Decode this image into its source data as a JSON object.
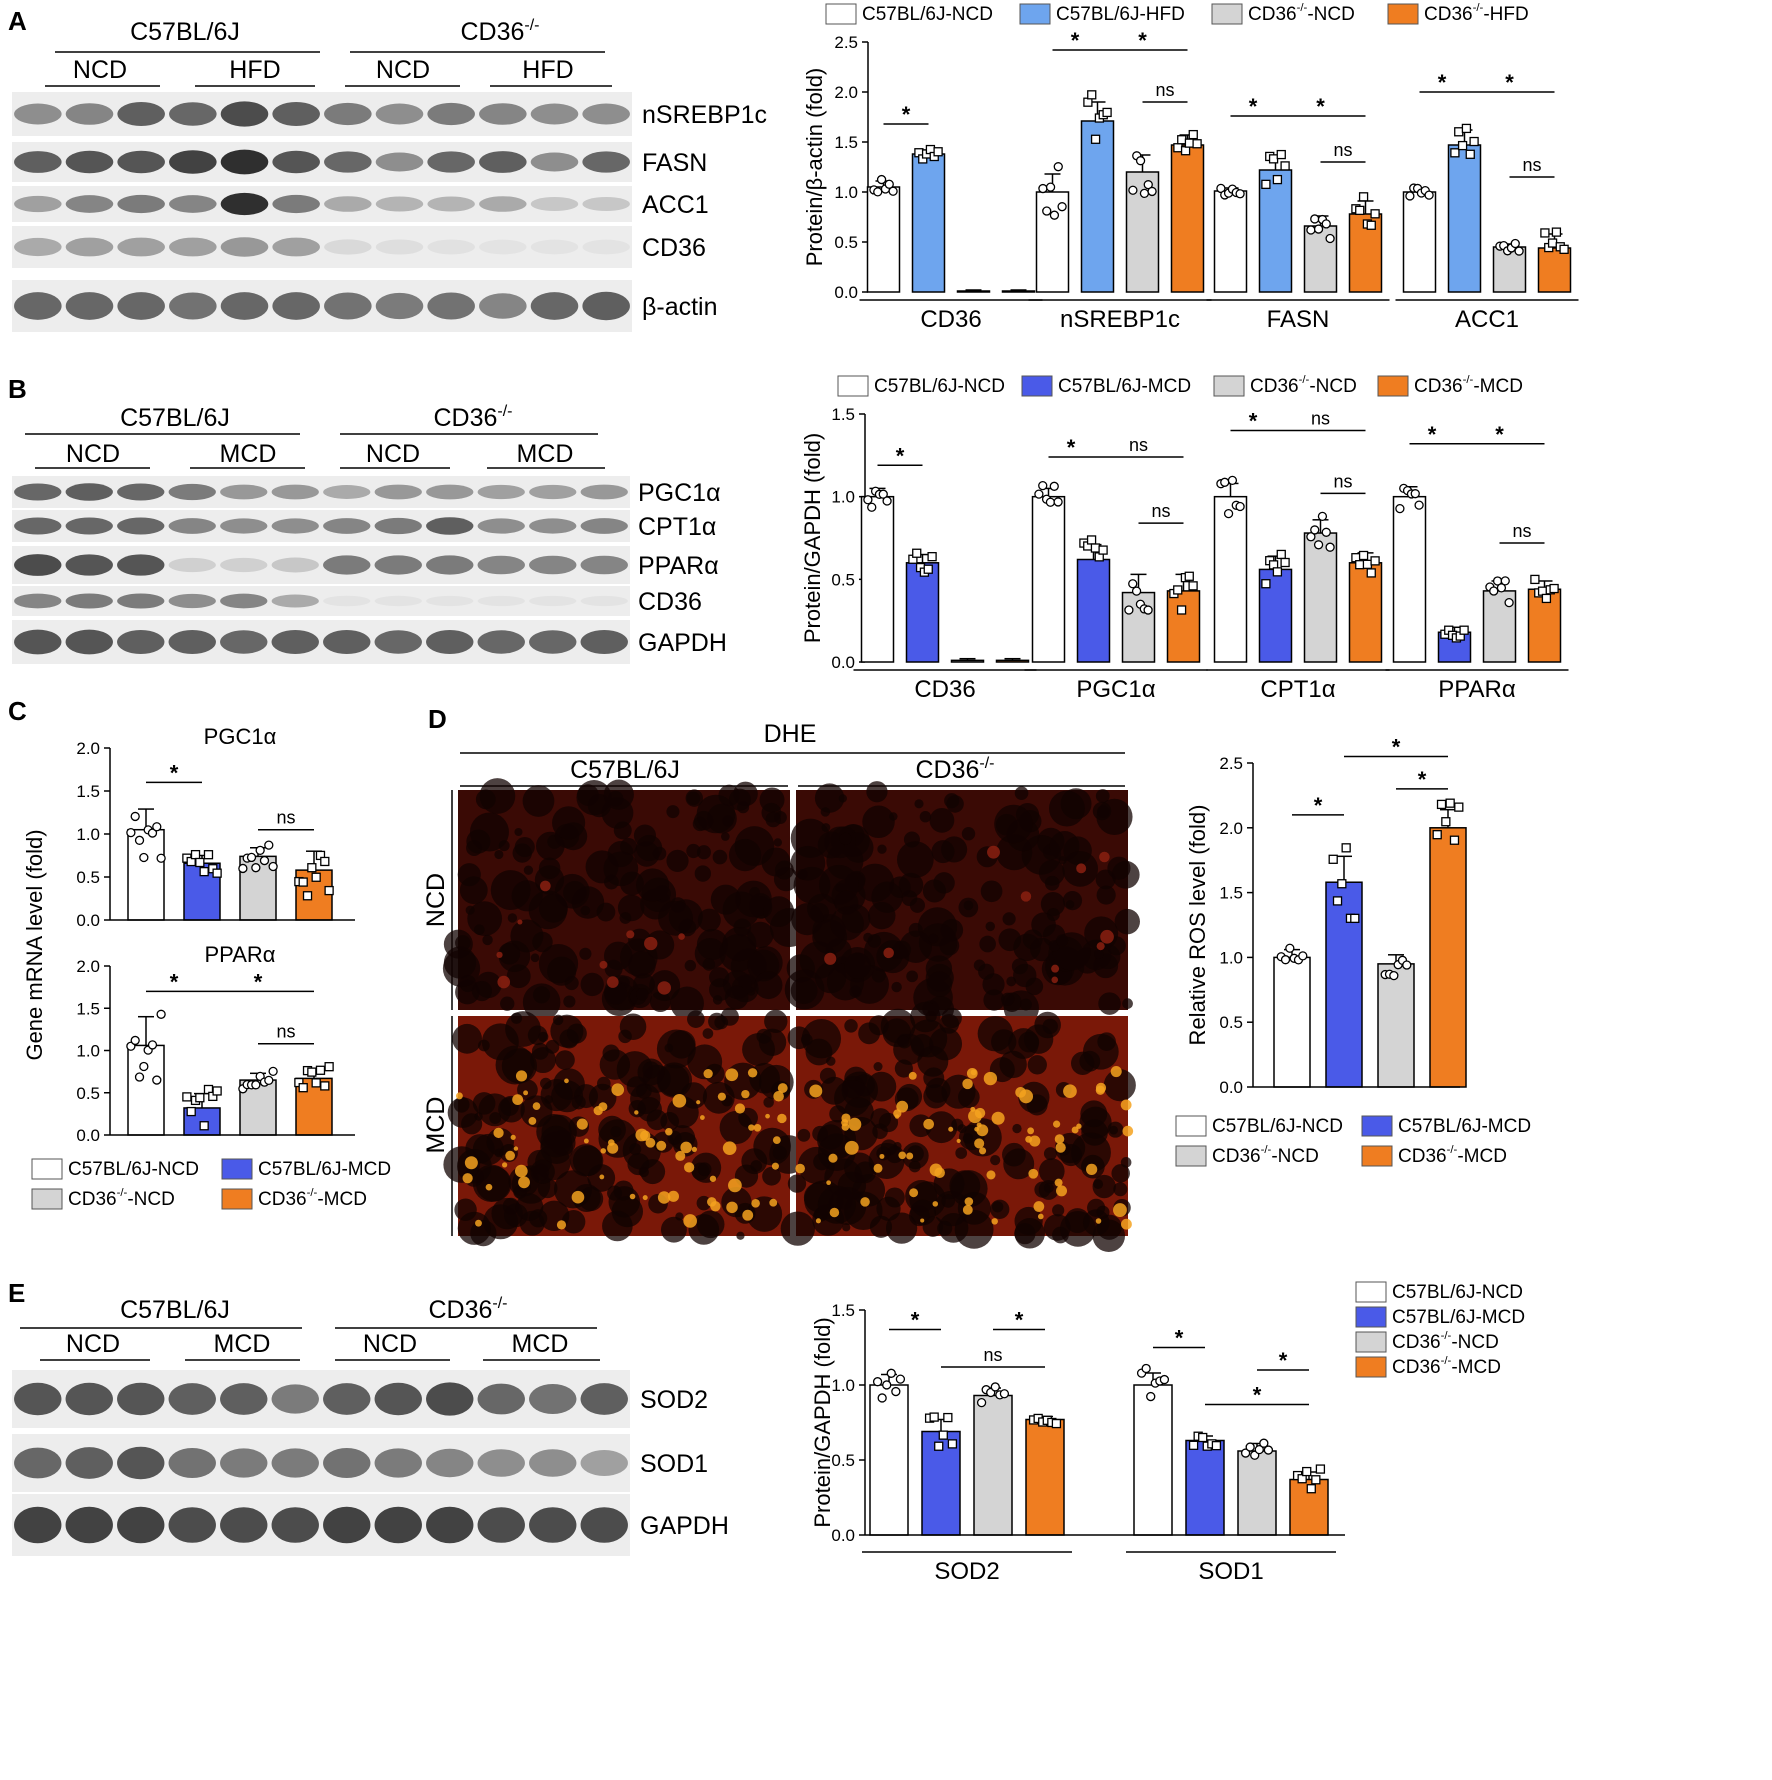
{
  "colors": {
    "white": "#ffffff",
    "hfd_blue": "#6ea5ee",
    "mcd_blue": "#4a5ae8",
    "gray": "#d4d4d4",
    "orange": "#ef7d21"
  },
  "panels": {
    "A": {
      "label": "A",
      "groups": [
        "C57BL/6J",
        "CD36"
      ],
      "superscript": "-/-",
      "sub": [
        "NCD",
        "HFD",
        "NCD",
        "HFD"
      ],
      "proteins": [
        "nSREBP1c",
        "FASN",
        "ACC1",
        "CD36",
        "β-actin"
      ]
    },
    "B": {
      "label": "B",
      "groups": [
        "C57BL/6J",
        "CD36"
      ],
      "superscript": "-/-",
      "sub": [
        "NCD",
        "MCD",
        "NCD",
        "MCD"
      ],
      "proteins": [
        "PGC1α",
        "CPT1α",
        "PPARα",
        "CD36",
        "GAPDH"
      ]
    },
    "C": {
      "label": "C"
    },
    "D": {
      "label": "D",
      "title": "DHE",
      "groups": [
        "C57BL/6J",
        "CD36"
      ],
      "superscript": "-/-",
      "rows": [
        "NCD",
        "MCD"
      ]
    },
    "E": {
      "label": "E",
      "groups": [
        "C57BL/6J",
        "CD36"
      ],
      "superscript": "-/-",
      "sub": [
        "NCD",
        "MCD",
        "NCD",
        "MCD"
      ],
      "proteins": [
        "SOD2",
        "SOD1",
        "GAPDH"
      ]
    }
  },
  "chart_data": [
    {
      "id": "A",
      "type": "bar",
      "ylabel": "Protein/β-actin (fold)",
      "ylim": [
        0,
        2.5
      ],
      "yticks": [
        "0.0",
        "0.5",
        "1.0",
        "1.5",
        "2.0",
        "2.5"
      ],
      "categories": [
        "CD36",
        "nSREBP1c",
        "FASN",
        "ACC1"
      ],
      "legend": [
        {
          "name": "C57BL/6J-NCD",
          "sup": ""
        },
        {
          "name": "C57BL/6J-HFD",
          "sup": ""
        },
        {
          "name": "CD36",
          "sup": "-/-",
          "suffix": "-NCD"
        },
        {
          "name": "CD36",
          "sup": "-/-",
          "suffix": "-HFD"
        }
      ],
      "series_colors": [
        "#ffffff",
        "#6ea5ee",
        "#d4d4d4",
        "#ef7d21"
      ],
      "series": [
        {
          "values": [
            1.05,
            1.0,
            1.01,
            1.0
          ],
          "err": [
            0.06,
            0.18,
            0.03,
            0.03
          ]
        },
        {
          "values": [
            1.38,
            1.71,
            1.22,
            1.47
          ],
          "err": [
            0.04,
            0.19,
            0.12,
            0.15
          ]
        },
        {
          "values": [
            0.01,
            1.2,
            0.66,
            0.45
          ],
          "err": [
            0.01,
            0.17,
            0.1,
            0.03
          ]
        },
        {
          "values": [
            0.01,
            1.47,
            0.78,
            0.44
          ],
          "err": [
            0.01,
            0.1,
            0.13,
            0.14
          ]
        }
      ],
      "annotations": [
        {
          "text": "*",
          "cat": 0,
          "from": 0,
          "to": 1,
          "y": 1.68
        },
        {
          "text": "*",
          "cat": 1,
          "from": 0,
          "to": 1,
          "y": 2.42
        },
        {
          "text": "*",
          "cat": 1,
          "from": 1,
          "to": 3,
          "y": 2.42
        },
        {
          "text": "ns",
          "cat": 1,
          "from": 2,
          "to": 3,
          "y": 1.9
        },
        {
          "text": "*",
          "cat": 2,
          "from": 0,
          "to": 1,
          "y": 1.76
        },
        {
          "text": "*",
          "cat": 2,
          "from": 1,
          "to": 3,
          "y": 1.76
        },
        {
          "text": "ns",
          "cat": 2,
          "from": 2,
          "to": 3,
          "y": 1.3
        },
        {
          "text": "*",
          "cat": 3,
          "from": 0,
          "to": 1,
          "y": 2.0
        },
        {
          "text": "*",
          "cat": 3,
          "from": 1,
          "to": 3,
          "y": 2.0
        },
        {
          "text": "ns",
          "cat": 3,
          "from": 2,
          "to": 3,
          "y": 1.15
        }
      ]
    },
    {
      "id": "B",
      "type": "bar",
      "ylabel": "Protein/GAPDH (fold)",
      "ylim": [
        0,
        1.5
      ],
      "yticks": [
        "0.0",
        "0.5",
        "1.0",
        "1.5"
      ],
      "categories": [
        "CD36",
        "PGC1α",
        "CPT1α",
        "PPARα"
      ],
      "legend": [
        {
          "name": "C57BL/6J-NCD",
          "sup": ""
        },
        {
          "name": "C57BL/6J-MCD",
          "sup": ""
        },
        {
          "name": "CD36",
          "sup": "-/-",
          "suffix": "-NCD"
        },
        {
          "name": "CD36",
          "sup": "-/-",
          "suffix": "-MCD"
        }
      ],
      "series_colors": [
        "#ffffff",
        "#4a5ae8",
        "#d4d4d4",
        "#ef7d21"
      ],
      "series": [
        {
          "values": [
            1.0,
            1.0,
            1.0,
            1.0
          ],
          "err": [
            0.05,
            0.05,
            0.08,
            0.06
          ]
        },
        {
          "values": [
            0.6,
            0.62,
            0.56,
            0.18
          ],
          "err": [
            0.05,
            0.09,
            0.08,
            0.03
          ]
        },
        {
          "values": [
            0.01,
            0.42,
            0.78,
            0.43
          ],
          "err": [
            0.01,
            0.11,
            0.08,
            0.06
          ]
        },
        {
          "values": [
            0.01,
            0.43,
            0.6,
            0.44
          ],
          "err": [
            0.01,
            0.1,
            0.06,
            0.05
          ]
        }
      ],
      "annotations": [
        {
          "text": "*",
          "cat": 0,
          "from": 0,
          "to": 1,
          "y": 1.19
        },
        {
          "text": "*",
          "cat": 1,
          "from": 0,
          "to": 1,
          "y": 1.24
        },
        {
          "text": "ns",
          "cat": 1,
          "from": 1,
          "to": 3,
          "y": 1.24
        },
        {
          "text": "ns",
          "cat": 1,
          "from": 2,
          "to": 3,
          "y": 0.84
        },
        {
          "text": "*",
          "cat": 2,
          "from": 0,
          "to": 1,
          "y": 1.4
        },
        {
          "text": "ns",
          "cat": 2,
          "from": 1,
          "to": 3,
          "y": 1.4
        },
        {
          "text": "ns",
          "cat": 2,
          "from": 2,
          "to": 3,
          "y": 1.02
        },
        {
          "text": "*",
          "cat": 3,
          "from": 0,
          "to": 1,
          "y": 1.32
        },
        {
          "text": "*",
          "cat": 3,
          "from": 1,
          "to": 3,
          "y": 1.32
        },
        {
          "text": "ns",
          "cat": 3,
          "from": 2,
          "to": 3,
          "y": 0.72
        }
      ]
    },
    {
      "id": "C1",
      "type": "bar",
      "title": "PGC1α",
      "ylim": [
        0,
        2.0
      ],
      "yticks": [
        "0.0",
        "0.5",
        "1.0",
        "1.5",
        "2.0"
      ],
      "categories": [
        ""
      ],
      "series_colors": [
        "#ffffff",
        "#4a5ae8",
        "#d4d4d4",
        "#ef7d21"
      ],
      "series": [
        {
          "values": [
            1.05
          ],
          "err": [
            0.24
          ]
        },
        {
          "values": [
            0.66
          ],
          "err": [
            0.09
          ]
        },
        {
          "values": [
            0.74
          ],
          "err": [
            0.1
          ]
        },
        {
          "values": [
            0.58
          ],
          "err": [
            0.22
          ]
        }
      ],
      "annotations": [
        {
          "text": "*",
          "cat": 0,
          "from": 0,
          "to": 1,
          "y": 1.6
        },
        {
          "text": "ns",
          "cat": 0,
          "from": 2,
          "to": 3,
          "y": 1.05
        }
      ]
    },
    {
      "id": "C2",
      "type": "bar",
      "title": "PPARα",
      "ylim": [
        0,
        2.0
      ],
      "yticks": [
        "0.0",
        "0.5",
        "1.0",
        "1.5",
        "2.0"
      ],
      "categories": [
        ""
      ],
      "series_colors": [
        "#ffffff",
        "#4a5ae8",
        "#d4d4d4",
        "#ef7d21"
      ],
      "series": [
        {
          "values": [
            1.06
          ],
          "err": [
            0.34
          ]
        },
        {
          "values": [
            0.32
          ],
          "err": [
            0.17
          ]
        },
        {
          "values": [
            0.65
          ],
          "err": [
            0.08
          ]
        },
        {
          "values": [
            0.67
          ],
          "err": [
            0.1
          ]
        }
      ],
      "annotations": [
        {
          "text": "*",
          "cat": 0,
          "from": 0,
          "to": 1,
          "y": 1.7
        },
        {
          "text": "*",
          "cat": 0,
          "from": 1,
          "to": 3,
          "y": 1.7
        },
        {
          "text": "ns",
          "cat": 0,
          "from": 2,
          "to": 3,
          "y": 1.08
        }
      ]
    },
    {
      "id": "C_legend",
      "type": "legend",
      "ylabel": "Gene mRNA level (fold)",
      "legend": [
        {
          "name": "C57BL/6J-NCD",
          "sup": ""
        },
        {
          "name": "C57BL/6J-MCD",
          "sup": ""
        },
        {
          "name": "CD36",
          "sup": "-/-",
          "suffix": "-NCD"
        },
        {
          "name": "CD36",
          "sup": "-/-",
          "suffix": "-MCD"
        }
      ]
    },
    {
      "id": "D",
      "type": "bar",
      "ylabel": "Relative ROS level (fold)",
      "ylim": [
        0,
        2.5
      ],
      "yticks": [
        "0.0",
        "0.5",
        "1.0",
        "1.5",
        "2.0",
        "2.5"
      ],
      "categories": [
        ""
      ],
      "series_colors": [
        "#ffffff",
        "#4a5ae8",
        "#d4d4d4",
        "#ef7d21"
      ],
      "legend": [
        {
          "name": "C57BL/6J-NCD",
          "sup": ""
        },
        {
          "name": "C57BL/6J-MCD",
          "sup": ""
        },
        {
          "name": "CD36",
          "sup": "-/-",
          "suffix": "-NCD"
        },
        {
          "name": "CD36",
          "sup": "-/-",
          "suffix": "-MCD"
        }
      ],
      "series": [
        {
          "values": [
            1.0
          ],
          "err": [
            0.06
          ]
        },
        {
          "values": [
            1.58
          ],
          "err": [
            0.2
          ]
        },
        {
          "values": [
            0.95
          ],
          "err": [
            0.07
          ]
        },
        {
          "values": [
            2.0
          ],
          "err": [
            0.14
          ]
        }
      ],
      "annotations": [
        {
          "text": "*",
          "cat": 0,
          "from": 0,
          "to": 1,
          "y": 2.1
        },
        {
          "text": "*",
          "cat": 0,
          "from": 1,
          "to": 3,
          "y": 2.55
        },
        {
          "text": "*",
          "cat": 0,
          "from": 2,
          "to": 3,
          "y": 2.3
        }
      ]
    },
    {
      "id": "E",
      "type": "bar",
      "ylabel": "Protein/GAPDH (fold)",
      "ylim": [
        0,
        1.5
      ],
      "yticks": [
        "0.0",
        "0.5",
        "1.0",
        "1.5"
      ],
      "categories": [
        "SOD2",
        "SOD1"
      ],
      "series_colors": [
        "#ffffff",
        "#4a5ae8",
        "#d4d4d4",
        "#ef7d21"
      ],
      "legend": [
        {
          "name": "C57BL/6J-NCD",
          "sup": ""
        },
        {
          "name": "C57BL/6J-MCD",
          "sup": ""
        },
        {
          "name": "CD36",
          "sup": "-/-",
          "suffix": "-NCD"
        },
        {
          "name": "CD36",
          "sup": "-/-",
          "suffix": "-MCD"
        }
      ],
      "series": [
        {
          "values": [
            1.0,
            1.0
          ],
          "err": [
            0.07,
            0.08
          ]
        },
        {
          "values": [
            0.69,
            0.63
          ],
          "err": [
            0.08,
            0.03
          ]
        },
        {
          "values": [
            0.93,
            0.56
          ],
          "err": [
            0.05,
            0.05
          ]
        },
        {
          "values": [
            0.77,
            0.37
          ],
          "err": [
            0.02,
            0.05
          ]
        }
      ],
      "annotations": [
        {
          "text": "*",
          "cat": 0,
          "from": 0,
          "to": 1,
          "y": 1.37
        },
        {
          "text": "*",
          "cat": 0,
          "from": 2,
          "to": 3,
          "y": 1.37
        },
        {
          "text": "ns",
          "cat": 0,
          "from": 1,
          "to": 3,
          "y": 1.12
        },
        {
          "text": "*",
          "cat": 1,
          "from": 0,
          "to": 1,
          "y": 1.25
        },
        {
          "text": "*",
          "cat": 1,
          "from": 2,
          "to": 3,
          "y": 1.1
        },
        {
          "text": "*",
          "cat": 1,
          "from": 1,
          "to": 3,
          "y": 0.87
        }
      ]
    }
  ]
}
